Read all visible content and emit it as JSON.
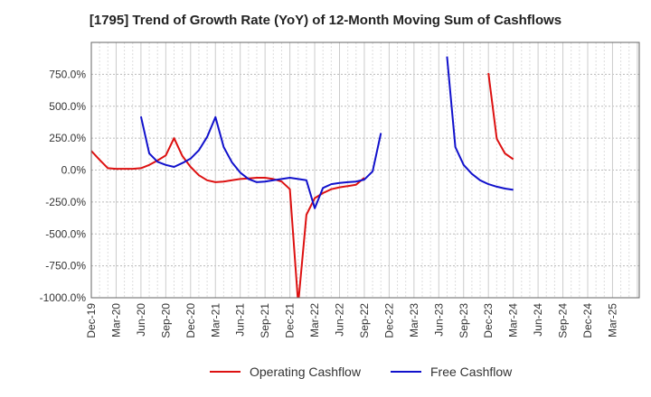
{
  "chart_data": {
    "type": "line",
    "title": "[1795]  Trend of Growth Rate (YoY) of 12-Month Moving Sum of Cashflows",
    "xlabel": "",
    "ylabel": "",
    "ylim": [
      -1000,
      950
    ],
    "y_ticks": [
      750,
      500,
      250,
      0,
      -250,
      -500,
      -750,
      -1000
    ],
    "y_tick_labels": [
      "750.0%",
      "500.0%",
      "250.0%",
      "0.0%",
      "-250.0%",
      "-500.0%",
      "-750.0%",
      "-1000.0%"
    ],
    "x_tick_labels": [
      "Dec-19",
      "Mar-20",
      "Jun-20",
      "Sep-20",
      "Dec-20",
      "Mar-21",
      "Jun-21",
      "Sep-21",
      "Dec-21",
      "Mar-22",
      "Jun-22",
      "Sep-22",
      "Dec-22",
      "Mar-23",
      "Jun-23",
      "Sep-23",
      "Dec-23",
      "Mar-24",
      "Jun-24",
      "Sep-24",
      "Dec-24",
      "Mar-25"
    ],
    "grid": true,
    "legend_position": "bottom-center",
    "series": [
      {
        "name": "Operating Cashflow",
        "color": "#dd1111",
        "points": [
          [
            0,
            150
          ],
          [
            1,
            80
          ],
          [
            2,
            15
          ],
          [
            3,
            10
          ],
          [
            4,
            10
          ],
          [
            5,
            10
          ],
          [
            6,
            15
          ],
          [
            7,
            40
          ],
          [
            8,
            75
          ],
          [
            9,
            115
          ],
          [
            10,
            250
          ],
          [
            11,
            110
          ],
          [
            12,
            25
          ],
          [
            13,
            -40
          ],
          [
            14,
            -80
          ],
          [
            15,
            -95
          ],
          [
            16,
            -90
          ],
          [
            17,
            -80
          ],
          [
            18,
            -70
          ],
          [
            19,
            -65
          ],
          [
            20,
            -60
          ],
          [
            21,
            -60
          ],
          [
            22,
            -70
          ],
          [
            23,
            -90
          ],
          [
            24,
            -150
          ],
          [
            25,
            -1050
          ],
          [
            26,
            -350
          ],
          [
            27,
            -220
          ],
          [
            28,
            -180
          ],
          [
            29,
            -150
          ],
          [
            30,
            -135
          ],
          [
            31,
            -125
          ],
          [
            32,
            -115
          ],
          [
            33,
            -60
          ]
        ],
        "segments": [
          [
            [
              48,
              760
            ],
            [
              49,
              245
            ],
            [
              50,
              130
            ],
            [
              51,
              85
            ]
          ]
        ]
      },
      {
        "name": "Free Cashflow",
        "color": "#1111cc",
        "points": [
          [
            6,
            420
          ],
          [
            7,
            130
          ],
          [
            8,
            65
          ],
          [
            9,
            40
          ],
          [
            10,
            25
          ],
          [
            11,
            55
          ],
          [
            12,
            90
          ],
          [
            13,
            155
          ],
          [
            14,
            260
          ],
          [
            15,
            415
          ],
          [
            16,
            180
          ],
          [
            17,
            60
          ],
          [
            18,
            -20
          ],
          [
            19,
            -70
          ],
          [
            20,
            -95
          ],
          [
            21,
            -90
          ],
          [
            22,
            -80
          ],
          [
            23,
            -70
          ],
          [
            24,
            -60
          ],
          [
            25,
            -70
          ],
          [
            26,
            -80
          ],
          [
            27,
            -300
          ],
          [
            28,
            -140
          ],
          [
            29,
            -110
          ],
          [
            30,
            -100
          ],
          [
            31,
            -95
          ],
          [
            32,
            -90
          ],
          [
            33,
            -75
          ],
          [
            34,
            -10
          ],
          [
            35,
            290
          ]
        ],
        "segments": [
          [
            [
              43,
              890
            ],
            [
              44,
              180
            ],
            [
              45,
              40
            ],
            [
              46,
              -30
            ],
            [
              47,
              -80
            ],
            [
              48,
              -110
            ],
            [
              49,
              -130
            ],
            [
              50,
              -145
            ],
            [
              51,
              -155
            ]
          ]
        ]
      }
    ]
  }
}
